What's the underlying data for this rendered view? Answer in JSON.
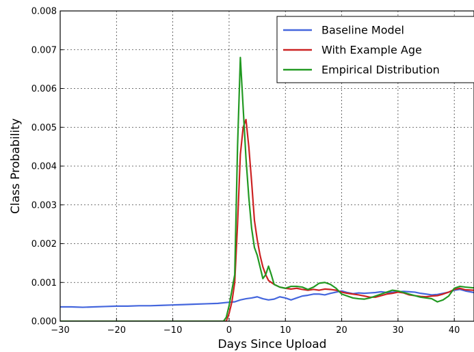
{
  "chart_data": {
    "type": "line",
    "title": "",
    "xlabel": "Days Since Upload",
    "ylabel": "Class Probability",
    "xlim": [
      -30,
      43.5
    ],
    "ylim": [
      0.0,
      0.008
    ],
    "xticks": [
      -30,
      -20,
      -10,
      0,
      10,
      20,
      30,
      40
    ],
    "xtick_labels": [
      "−30",
      "−20",
      "−10",
      "0",
      "10",
      "20",
      "30",
      "40"
    ],
    "yticks": [
      0.0,
      0.001,
      0.002,
      0.003,
      0.004,
      0.005,
      0.006,
      0.007,
      0.008
    ],
    "ytick_labels": [
      "0.000",
      "0.001",
      "0.002",
      "0.003",
      "0.004",
      "0.005",
      "0.006",
      "0.007",
      "0.008"
    ],
    "grid": true,
    "legend_position": "top-right",
    "series": [
      {
        "name": "Baseline Model",
        "color": "#4466dd",
        "x": [
          -30,
          -28,
          -26,
          -24,
          -22,
          -20,
          -18,
          -16,
          -14,
          -12,
          -10,
          -8,
          -6,
          -4,
          -2,
          0,
          1,
          2,
          3,
          4,
          5,
          6,
          7,
          8,
          9,
          10,
          11,
          12,
          13,
          14,
          15,
          16,
          17,
          18,
          19,
          20,
          21,
          22,
          23,
          24,
          25,
          26,
          27,
          28,
          29,
          30,
          31,
          32,
          33,
          34,
          35,
          36,
          37,
          38,
          39,
          40,
          41,
          42,
          43.5
        ],
        "y": [
          0.00037,
          0.00037,
          0.00036,
          0.00037,
          0.00038,
          0.00039,
          0.00039,
          0.0004,
          0.0004,
          0.00041,
          0.00042,
          0.00043,
          0.00044,
          0.00045,
          0.00046,
          0.00049,
          0.0005,
          0.00055,
          0.00058,
          0.0006,
          0.00063,
          0.00058,
          0.00055,
          0.00057,
          0.00063,
          0.0006,
          0.00055,
          0.0006,
          0.00065,
          0.00067,
          0.0007,
          0.0007,
          0.00068,
          0.00072,
          0.00075,
          0.00078,
          0.00074,
          0.00071,
          0.00073,
          0.00072,
          0.00073,
          0.00074,
          0.00076,
          0.00074,
          0.00075,
          0.00076,
          0.00077,
          0.00076,
          0.00075,
          0.00072,
          0.0007,
          0.00068,
          0.00069,
          0.00072,
          0.00075,
          0.0008,
          0.00082,
          0.00078,
          0.00074
        ]
      },
      {
        "name": "With Example Age",
        "color": "#cc2222",
        "x": [
          -30,
          -2,
          -1,
          -0.5,
          0,
          0.5,
          1,
          1.5,
          2,
          2.5,
          3,
          3.5,
          4,
          4.5,
          5,
          5.5,
          6,
          6.5,
          7,
          8,
          9,
          10,
          11,
          12,
          13,
          14,
          15,
          16,
          17,
          18,
          19,
          20,
          21,
          22,
          23,
          24,
          25,
          26,
          27,
          28,
          29,
          30,
          31,
          32,
          33,
          34,
          35,
          36,
          37,
          38,
          39,
          40,
          41,
          42,
          43.5
        ],
        "y": [
          0,
          0,
          0,
          0,
          0.0002,
          0.0005,
          0.001,
          0.0025,
          0.0043,
          0.005,
          0.0052,
          0.0045,
          0.0036,
          0.0026,
          0.0021,
          0.0017,
          0.0014,
          0.0012,
          0.00105,
          0.00095,
          0.00088,
          0.00085,
          0.00083,
          0.00085,
          0.00082,
          0.0008,
          0.00082,
          0.0008,
          0.00083,
          0.00082,
          0.0008,
          0.00075,
          0.00072,
          0.0007,
          0.00068,
          0.00065,
          0.00062,
          0.00062,
          0.00066,
          0.0007,
          0.00072,
          0.00075,
          0.00073,
          0.00068,
          0.00066,
          0.00064,
          0.00063,
          0.00065,
          0.00066,
          0.0007,
          0.00075,
          0.00082,
          0.00085,
          0.00081,
          0.0008
        ]
      },
      {
        "name": "Empirical Distribution",
        "color": "#229922",
        "x": [
          -30,
          -2,
          -1,
          -0.5,
          0,
          0.5,
          1,
          1.5,
          2,
          2.5,
          3,
          3.5,
          4,
          4.5,
          5,
          5.5,
          6,
          6.5,
          7,
          7.5,
          8,
          9,
          10,
          11,
          12,
          13,
          14,
          15,
          16,
          17,
          18,
          19,
          20,
          21,
          22,
          23,
          24,
          25,
          26,
          27,
          28,
          29,
          30,
          31,
          32,
          33,
          34,
          35,
          36,
          37,
          38,
          39,
          40,
          41,
          42,
          43.5
        ],
        "y": [
          0,
          0,
          0,
          0.0001,
          0.0004,
          0.0008,
          0.0012,
          0.0045,
          0.0068,
          0.0055,
          0.0042,
          0.0032,
          0.0024,
          0.0019,
          0.0017,
          0.0014,
          0.0011,
          0.0012,
          0.00142,
          0.0012,
          0.00095,
          0.00088,
          0.00085,
          0.0009,
          0.0009,
          0.00088,
          0.00082,
          0.00088,
          0.00098,
          0.001,
          0.00095,
          0.00085,
          0.0007,
          0.00065,
          0.0006,
          0.00058,
          0.00057,
          0.0006,
          0.00065,
          0.0007,
          0.00075,
          0.0008,
          0.00078,
          0.00074,
          0.0007,
          0.00066,
          0.00062,
          0.0006,
          0.00058,
          0.0005,
          0.00055,
          0.00065,
          0.00085,
          0.0009,
          0.00088,
          0.00086
        ]
      }
    ]
  }
}
